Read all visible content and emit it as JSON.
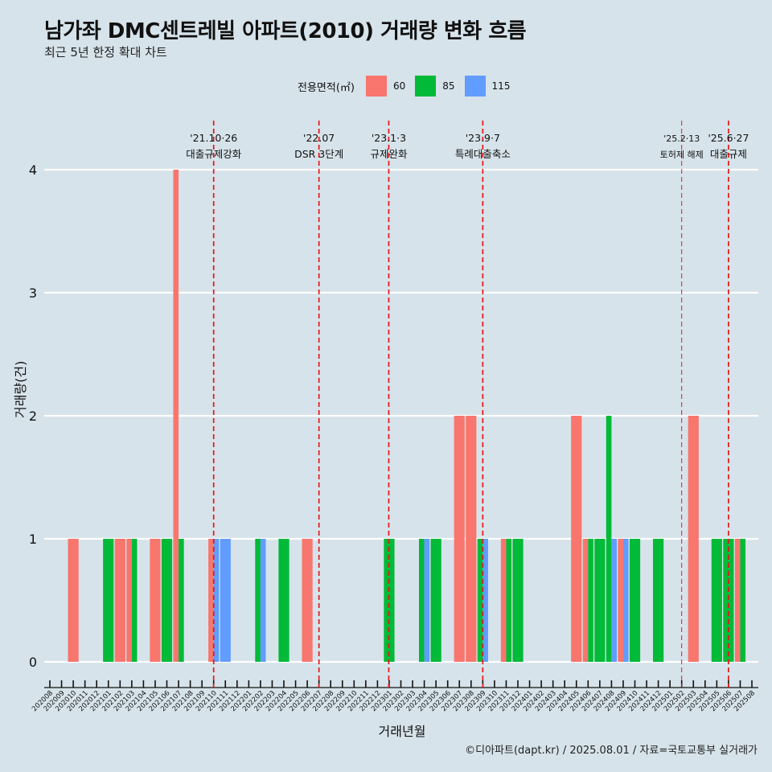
{
  "title": "남가좌 DMC센트레빌 아파트(2010) 거래량 변화 흐름",
  "subtitle": "최근 5년 한정 확대 차트",
  "caption": "©디아파트(dapt.kr) / 2025.08.01 / 자료=국토교통부 실거래가",
  "legend": {
    "title": "전용면적(㎡)",
    "items": [
      {
        "label": "60",
        "color": "#f8766d"
      },
      {
        "label": "85",
        "color": "#00ba38"
      },
      {
        "label": "115",
        "color": "#619cff"
      }
    ]
  },
  "chart_data": {
    "type": "bar",
    "xlabel": "거래년월",
    "ylabel": "거래량(건)",
    "ylim": [
      0,
      4
    ],
    "yticks": [
      0,
      1,
      2,
      3,
      4
    ],
    "categories": [
      "202008",
      "202009",
      "202010",
      "202011",
      "202012",
      "202101",
      "202102",
      "202103",
      "202104",
      "202105",
      "202106",
      "202107",
      "202108",
      "202109",
      "202110",
      "202111",
      "202112",
      "202201",
      "202202",
      "202203",
      "202204",
      "202205",
      "202206",
      "202207",
      "202208",
      "202209",
      "202210",
      "202211",
      "202212",
      "202301",
      "202302",
      "202303",
      "202304",
      "202305",
      "202306",
      "202307",
      "202308",
      "202309",
      "202310",
      "202311",
      "202312",
      "202401",
      "202402",
      "202403",
      "202404",
      "202405",
      "202406",
      "202407",
      "202408",
      "202409",
      "202410",
      "202411",
      "202412",
      "202501",
      "202502",
      "202503",
      "202504",
      "202505",
      "202506",
      "202507",
      "202508"
    ],
    "series": [
      {
        "name": "60",
        "color": "#f8766d",
        "values": [
          0,
          0,
          1,
          0,
          0,
          0,
          1,
          1,
          0,
          1,
          0,
          4,
          0,
          0,
          1,
          0,
          0,
          0,
          0,
          0,
          0,
          0,
          1,
          0,
          0,
          0,
          0,
          0,
          0,
          0,
          0,
          0,
          0,
          0,
          0,
          2,
          2,
          0,
          0,
          1,
          0,
          0,
          0,
          0,
          0,
          2,
          1,
          0,
          0,
          1,
          0,
          0,
          0,
          0,
          0,
          2,
          0,
          0,
          0,
          1,
          0
        ]
      },
      {
        "name": "85",
        "color": "#00ba38",
        "values": [
          0,
          0,
          0,
          0,
          0,
          1,
          0,
          1,
          0,
          0,
          1,
          1,
          0,
          0,
          0,
          0,
          0,
          0,
          1,
          0,
          1,
          0,
          0,
          0,
          0,
          0,
          0,
          0,
          0,
          1,
          0,
          0,
          1,
          1,
          0,
          0,
          0,
          1,
          0,
          1,
          1,
          0,
          0,
          0,
          0,
          0,
          1,
          1,
          2,
          0,
          1,
          0,
          1,
          0,
          0,
          0,
          0,
          1,
          1,
          1,
          0
        ]
      },
      {
        "name": "115",
        "color": "#619cff",
        "values": [
          0,
          0,
          0,
          0,
          0,
          0,
          0,
          0,
          0,
          0,
          0,
          0,
          0,
          0,
          1,
          1,
          0,
          0,
          1,
          0,
          0,
          0,
          0,
          0,
          0,
          0,
          0,
          0,
          0,
          0,
          0,
          0,
          1,
          0,
          0,
          0,
          0,
          1,
          0,
          0,
          0,
          0,
          0,
          0,
          0,
          0,
          0,
          0,
          1,
          1,
          0,
          0,
          0,
          0,
          0,
          0,
          0,
          0,
          0,
          0,
          0
        ]
      }
    ],
    "annotations": [
      {
        "x": "202110",
        "date": "'21.10·26",
        "text": "대출규제강화"
      },
      {
        "x": "202207",
        "date": "'22.07",
        "text": "DSR 3단계"
      },
      {
        "x": "202301",
        "date": "'23.1·3",
        "text": "규제완화"
      },
      {
        "x": "202309",
        "date": "'23.9·7",
        "text": "특례대출축소"
      },
      {
        "x": "202502",
        "date": "'25.2·13",
        "text": "토허제 해제"
      },
      {
        "x": "202506",
        "date": "'25.6·27",
        "text": "대출규제"
      }
    ],
    "grid": "horizontal major only",
    "legend_position": "top"
  }
}
